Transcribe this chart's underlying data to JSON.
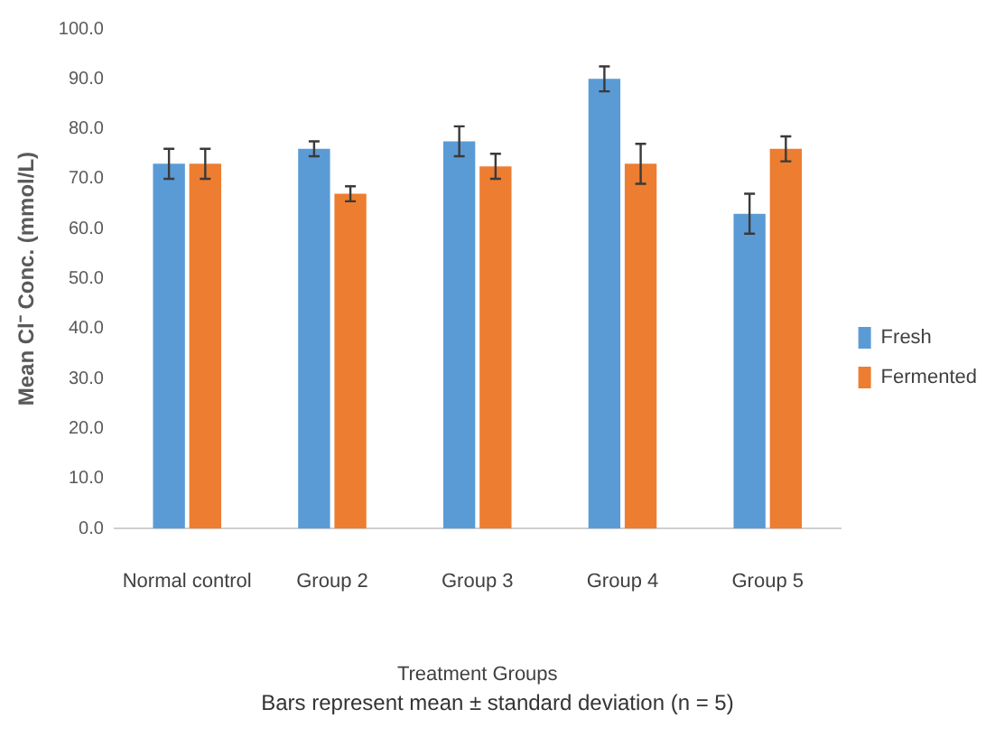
{
  "chart_data": {
    "type": "bar",
    "ylabel": "Mean Cl⁻ Conc. (mmol/L)",
    "xlabel": "Treatment Groups",
    "categories": [
      "Normal control",
      "Group 2",
      "Group 3",
      "Group 4",
      "Group 5"
    ],
    "series": [
      {
        "name": "Fresh",
        "color": "#5b9bd5",
        "values": [
          73,
          76,
          77.5,
          90,
          63
        ],
        "errors": [
          3,
          1.5,
          3,
          2.5,
          4
        ]
      },
      {
        "name": "Fermented",
        "color": "#ed7d31",
        "values": [
          73,
          67,
          72.5,
          73,
          76
        ],
        "errors": [
          3,
          1.5,
          2.5,
          4,
          2.5
        ]
      }
    ],
    "ylim": [
      0,
      100
    ],
    "yticks": [
      {
        "value": 0,
        "label": "0.0"
      },
      {
        "value": 10,
        "label": "10.0"
      },
      {
        "value": 20,
        "label": "20.0"
      },
      {
        "value": 30,
        "label": "30.0"
      },
      {
        "value": 40,
        "label": "40.0"
      },
      {
        "value": 50,
        "label": "50.0"
      },
      {
        "value": 60,
        "label": "60.0"
      },
      {
        "value": 70,
        "label": "70.0"
      },
      {
        "value": 80,
        "label": "80.0"
      },
      {
        "value": 90,
        "label": "90.0"
      },
      {
        "value": 100,
        "label": "100.0"
      }
    ],
    "legend": "right",
    "annotations": [
      "Bars represent mean ± standard deviation (n = 5)"
    ]
  }
}
